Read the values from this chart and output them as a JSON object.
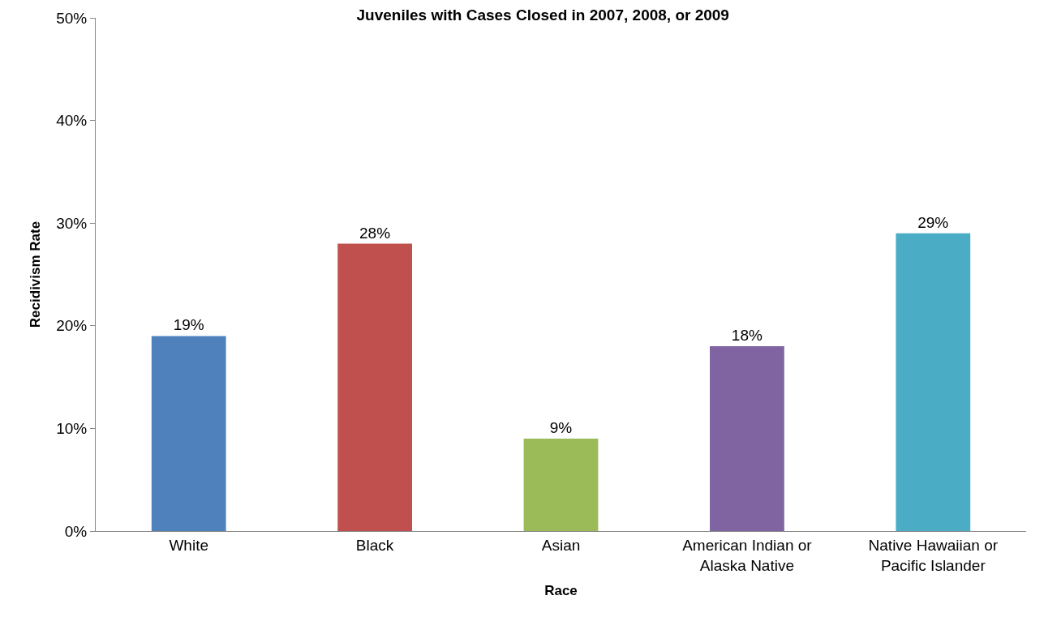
{
  "chart_data": {
    "type": "bar",
    "title": "Juveniles with Cases Closed in 2007, 2008, or 2009",
    "xlabel": "Race",
    "ylabel": "Recidivism Rate",
    "categories": [
      "White",
      "Black",
      "Asian",
      "American Indian or Alaska Native",
      "Native Hawaiian or Pacific Islander"
    ],
    "values": [
      19,
      28,
      9,
      18,
      29
    ],
    "colors": [
      "#4f81bd",
      "#c0504d",
      "#9bbb59",
      "#8064a2",
      "#4bacc6"
    ],
    "value_labels": [
      "19%",
      "28%",
      "9%",
      "18%",
      "29%"
    ],
    "ylim": [
      0,
      50
    ],
    "yticks": [
      {
        "value": 0,
        "label": "0%"
      },
      {
        "value": 10,
        "label": "10%"
      },
      {
        "value": 20,
        "label": "20%"
      },
      {
        "value": 30,
        "label": "30%"
      },
      {
        "value": 40,
        "label": "40%"
      },
      {
        "value": 50,
        "label": "50%"
      }
    ],
    "grid": false,
    "legend": false
  }
}
